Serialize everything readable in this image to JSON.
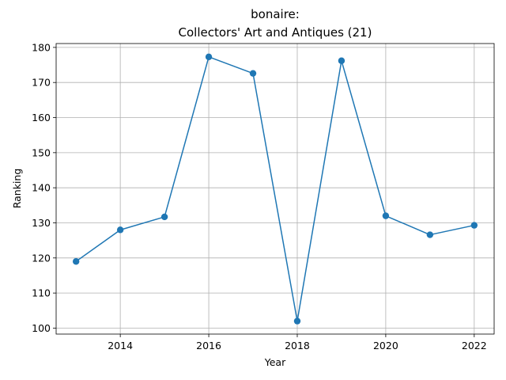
{
  "chart_data": {
    "type": "line",
    "title_line1": "bonaire:",
    "title_line2": "Collectors' Art and Antiques (21)",
    "xlabel": "Year",
    "ylabel": "Ranking",
    "x": [
      2013,
      2014,
      2015,
      2016,
      2017,
      2018,
      2019,
      2020,
      2021,
      2022
    ],
    "y": [
      119,
      128,
      131.7,
      177.3,
      172.6,
      102,
      176.2,
      132,
      126.6,
      129.3
    ],
    "xlim": [
      2012.55,
      2022.45
    ],
    "ylim": [
      98.3,
      181.1
    ],
    "xticks": [
      2014,
      2016,
      2018,
      2020,
      2022
    ],
    "yticks": [
      100,
      110,
      120,
      130,
      140,
      150,
      160,
      170,
      180
    ],
    "grid": true,
    "line_color": "#1f77b4",
    "marker": "circle"
  }
}
